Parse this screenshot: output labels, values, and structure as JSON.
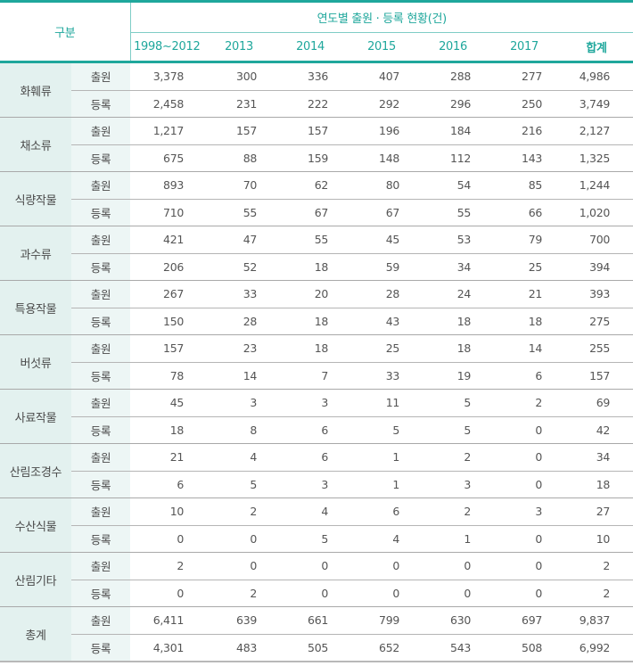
{
  "table": {
    "header": {
      "category_label": "구분",
      "group_label": "연도별 출원 · 등록 현황(건)",
      "columns": [
        "1998~2012",
        "2013",
        "2014",
        "2015",
        "2016",
        "2017",
        "합계"
      ]
    },
    "row_types": {
      "apply": "출원",
      "register": "등록"
    },
    "groups": [
      {
        "category": "화훼류",
        "apply": [
          "3,378",
          "300",
          "336",
          "407",
          "288",
          "277",
          "4,986"
        ],
        "register": [
          "2,458",
          "231",
          "222",
          "292",
          "296",
          "250",
          "3,749"
        ]
      },
      {
        "category": "채소류",
        "apply": [
          "1,217",
          "157",
          "157",
          "196",
          "184",
          "216",
          "2,127"
        ],
        "register": [
          "675",
          "88",
          "159",
          "148",
          "112",
          "143",
          "1,325"
        ]
      },
      {
        "category": "식량작물",
        "apply": [
          "893",
          "70",
          "62",
          "80",
          "54",
          "85",
          "1,244"
        ],
        "register": [
          "710",
          "55",
          "67",
          "67",
          "55",
          "66",
          "1,020"
        ]
      },
      {
        "category": "과수류",
        "apply": [
          "421",
          "47",
          "55",
          "45",
          "53",
          "79",
          "700"
        ],
        "register": [
          "206",
          "52",
          "18",
          "59",
          "34",
          "25",
          "394"
        ]
      },
      {
        "category": "특용작물",
        "apply": [
          "267",
          "33",
          "20",
          "28",
          "24",
          "21",
          "393"
        ],
        "register": [
          "150",
          "28",
          "18",
          "43",
          "18",
          "18",
          "275"
        ]
      },
      {
        "category": "버섯류",
        "apply": [
          "157",
          "23",
          "18",
          "25",
          "18",
          "14",
          "255"
        ],
        "register": [
          "78",
          "14",
          "7",
          "33",
          "19",
          "6",
          "157"
        ]
      },
      {
        "category": "사료작물",
        "apply": [
          "45",
          "3",
          "3",
          "11",
          "5",
          "2",
          "69"
        ],
        "register": [
          "18",
          "8",
          "6",
          "5",
          "5",
          "0",
          "42"
        ]
      },
      {
        "category": "산림조경수",
        "apply": [
          "21",
          "4",
          "6",
          "1",
          "2",
          "0",
          "34"
        ],
        "register": [
          "6",
          "5",
          "3",
          "1",
          "3",
          "0",
          "18"
        ]
      },
      {
        "category": "수산식물",
        "apply": [
          "10",
          "2",
          "4",
          "6",
          "2",
          "3",
          "27"
        ],
        "register": [
          "0",
          "0",
          "5",
          "4",
          "1",
          "0",
          "10"
        ]
      },
      {
        "category": "산림기타",
        "apply": [
          "2",
          "0",
          "0",
          "0",
          "0",
          "0",
          "2"
        ],
        "register": [
          "0",
          "2",
          "0",
          "0",
          "0",
          "0",
          "2"
        ]
      },
      {
        "category": "총계",
        "apply": [
          "6,411",
          "639",
          "661",
          "799",
          "630",
          "697",
          "9,837"
        ],
        "register": [
          "4,301",
          "483",
          "505",
          "652",
          "543",
          "508",
          "6,992"
        ]
      }
    ]
  },
  "colors": {
    "accent_teal": "#1fa79c",
    "category_bg": "#e3f1ef",
    "subcategory_bg": "#edf6f5",
    "text": "#555555"
  }
}
